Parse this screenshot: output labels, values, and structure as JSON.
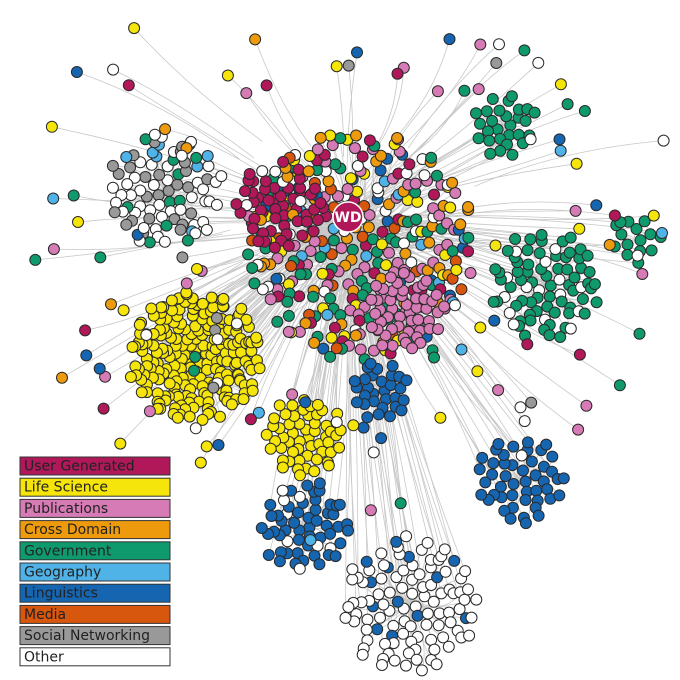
{
  "hub": {
    "label": "WD",
    "color": "#b0185a"
  },
  "legend": [
    {
      "label": "User Generated",
      "color": "#b0185a"
    },
    {
      "label": "Life Science",
      "color": "#f5e50a"
    },
    {
      "label": "Publications",
      "color": "#d67bb5"
    },
    {
      "label": "Cross Domain",
      "color": "#ee9a0d"
    },
    {
      "label": "Government",
      "color": "#0f9a6e"
    },
    {
      "label": "Geography",
      "color": "#4fb3e8"
    },
    {
      "label": "Linguistics",
      "color": "#1565b0"
    },
    {
      "label": "Media",
      "color": "#d8570e"
    },
    {
      "label": "Social Networking",
      "color": "#999999"
    },
    {
      "label": "Other",
      "color": "#ffffff"
    }
  ]
}
